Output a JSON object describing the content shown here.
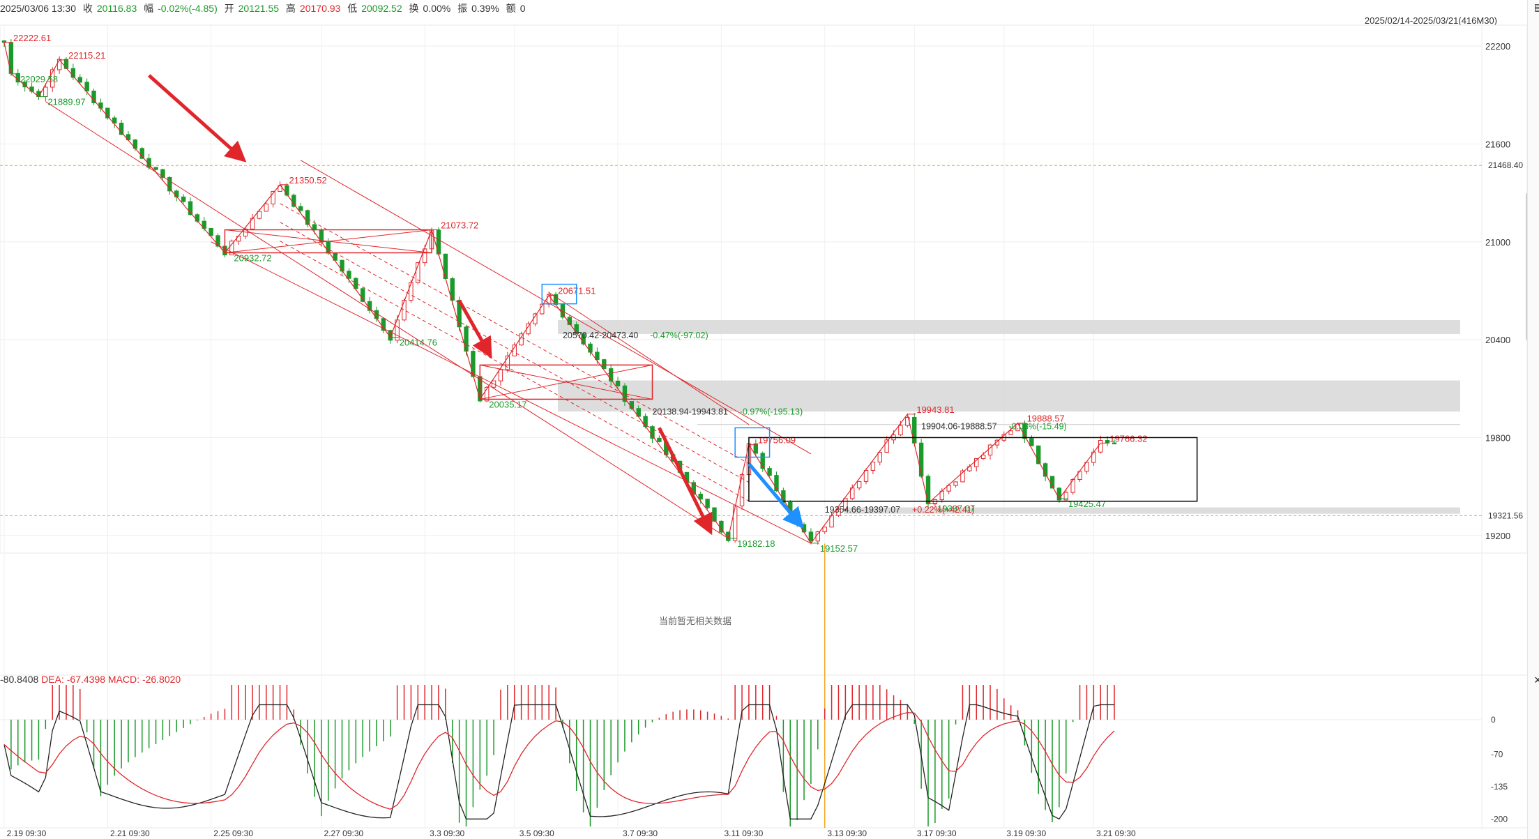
{
  "header": {
    "datetime": "2025/03/06 13:30",
    "close_label": "收",
    "close_value": "20116.83",
    "change_label": "幅",
    "change_value": "-0.02%(-4.85)",
    "open_label": "开",
    "open_value": "20121.55",
    "high_label": "高",
    "high_value": "20170.93",
    "low_label": "低",
    "low_value": "20092.52",
    "turnover_label": "换",
    "turnover_value": "0.00%",
    "amplitude_label": "振",
    "amplitude_value": "0.39%",
    "amount_label": "额",
    "amount_value": "0",
    "range": "2025/02/14-2025/03/21(416M30)"
  },
  "no_data_text": "当前暂无相关数据",
  "macd_legend": {
    "diff_value": "-80.8408",
    "dea_label": "DEA:",
    "dea_value": "-67.4398",
    "macd_label": "MACD:",
    "macd_value": "-26.8020"
  },
  "colors": {
    "up": "#e0262b",
    "down": "#1a9a2a",
    "dea": "#e0262b",
    "diff": "#222222",
    "highlight_box": "#1e90ff",
    "zone": "#d9d9d9"
  },
  "chart_data": {
    "type": "candlestick",
    "price_axis": {
      "ticks": [
        22200,
        21600,
        21000,
        20400,
        19800,
        19200
      ],
      "ylim": [
        19105,
        22320
      ]
    },
    "price_flags": [
      {
        "value": "21468.40",
        "color": "#f5a623"
      },
      {
        "value": "19321.56",
        "color": "#f5a623"
      }
    ],
    "x_ticks": [
      "2.19 09:30",
      "2.21 09:30",
      "2.25 09:30",
      "2.27 09:30",
      "3.3 09:30",
      "3.5 09:30",
      "3.7 09:30",
      "3.11 09:30",
      "3.13 09:30",
      "3.17 09:30",
      "3.19 09:30",
      "3.21 09:30"
    ],
    "pivots": [
      {
        "t": 0,
        "price": 22222.61,
        "label": "22222.61",
        "side": "top"
      },
      {
        "t": 1,
        "price": 22029.58,
        "label": "22029.58",
        "side": "bottom"
      },
      {
        "t": 8,
        "price": 22115.21,
        "label": "22115.21",
        "side": "top"
      },
      {
        "t": 5,
        "price": 21889.97,
        "label": "21889.97",
        "side": "bottom"
      },
      {
        "t": 40,
        "price": 21350.52,
        "label": "21350.52",
        "side": "top"
      },
      {
        "t": 32,
        "price": 20932.72,
        "label": "20932.72",
        "side": "bottom"
      },
      {
        "t": 62,
        "price": 21073.72,
        "label": "21073.72",
        "side": "top"
      },
      {
        "t": 56,
        "price": 20414.76,
        "label": "20414.76",
        "side": "bottom"
      },
      {
        "t": 79,
        "price": 20671.51,
        "label": "20671.51",
        "side": "top"
      },
      {
        "t": 69,
        "price": 20035.17,
        "label": "20035.17",
        "side": "bottom"
      },
      {
        "t": 108,
        "price": 19756.09,
        "label": "19756.09",
        "side": "top"
      },
      {
        "t": 105,
        "price": 19182.18,
        "label": "19182.18",
        "side": "bottom"
      },
      {
        "t": 117,
        "price": 19152.57,
        "label": "19152.57",
        "side": "bottom"
      },
      {
        "t": 131,
        "price": 19943.81,
        "label": "19943.81",
        "side": "top"
      },
      {
        "t": 134,
        "price": 19397.07,
        "label": "19397.07",
        "side": "bottom"
      },
      {
        "t": 147,
        "price": 19888.57,
        "label": "19888.57",
        "side": "top"
      },
      {
        "t": 153,
        "price": 19425.47,
        "label": "19425.47",
        "side": "bottom"
      },
      {
        "t": 159,
        "price": 19766.32,
        "label": "19766.32",
        "side": "top"
      }
    ],
    "annotations": [
      {
        "text": "20570.42-20473.40",
        "pct": "-0.47%(-97.02)",
        "color": "#1a9a2a"
      },
      {
        "text": "20138.94-19943.81",
        "pct": "-0.97%(-195.13)",
        "color": "#1a9a2a"
      },
      {
        "text": "19904.06-19888.57",
        "pct": "-0.08%(-15.49)",
        "color": "#1a9a2a"
      },
      {
        "text": "19354.66-19397.07",
        "pct": "+0.22%(+42.41)",
        "color": "#e0262b"
      }
    ],
    "zones": [
      {
        "from": 20435,
        "to": 20520
      },
      {
        "from": 19960,
        "to": 20150
      },
      {
        "from": 19333,
        "to": 19372
      }
    ],
    "macd_axis": {
      "ticks": [
        0,
        -70,
        -135,
        -200
      ],
      "ylim": [
        -215,
        70
      ]
    }
  }
}
